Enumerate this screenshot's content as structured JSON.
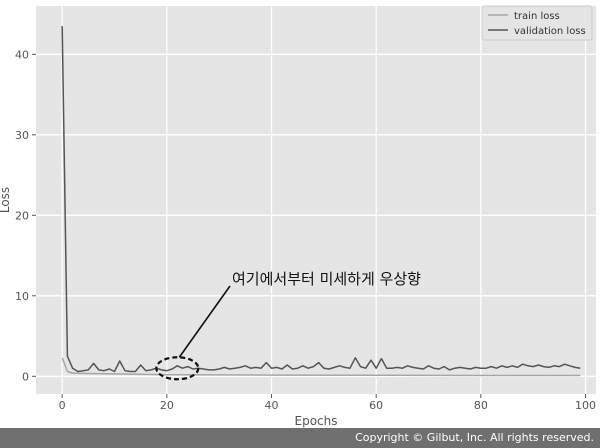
{
  "chart_data": {
    "type": "line",
    "xlabel": "Epochs",
    "ylabel": "Loss",
    "xlim": [
      -5,
      102
    ],
    "ylim": [
      -2.2,
      46
    ],
    "xticks": [
      0,
      20,
      40,
      60,
      80,
      100
    ],
    "yticks": [
      0,
      10,
      20,
      30,
      40
    ],
    "grid": true,
    "legend_position": "top-right",
    "series": [
      {
        "name": "train loss",
        "color": "#a6a6a6",
        "points": [
          [
            0,
            2.3
          ],
          [
            1,
            0.6
          ],
          [
            2,
            0.4
          ],
          [
            5,
            0.35
          ],
          [
            10,
            0.3
          ],
          [
            20,
            0.2
          ],
          [
            40,
            0.15
          ],
          [
            60,
            0.12
          ],
          [
            80,
            0.1
          ],
          [
            99,
            0.1
          ]
        ]
      },
      {
        "name": "validation loss",
        "color": "#555555",
        "points": [
          [
            0,
            43.5
          ],
          [
            1,
            2.5
          ],
          [
            2,
            1.0
          ],
          [
            3,
            0.6
          ],
          [
            4,
            0.7
          ],
          [
            5,
            0.8
          ],
          [
            6,
            1.6
          ],
          [
            7,
            0.8
          ],
          [
            8,
            0.7
          ],
          [
            9,
            0.9
          ],
          [
            10,
            0.6
          ],
          [
            11,
            1.9
          ],
          [
            12,
            0.7
          ],
          [
            13,
            0.6
          ],
          [
            14,
            0.6
          ],
          [
            15,
            1.4
          ],
          [
            16,
            0.7
          ],
          [
            17,
            0.8
          ],
          [
            18,
            1.0
          ],
          [
            19,
            0.8
          ],
          [
            20,
            0.7
          ],
          [
            21,
            0.9
          ],
          [
            22,
            1.3
          ],
          [
            23,
            1.0
          ],
          [
            24,
            1.2
          ],
          [
            25,
            0.9
          ],
          [
            26,
            1.0
          ],
          [
            27,
            0.9
          ],
          [
            28,
            0.8
          ],
          [
            29,
            0.8
          ],
          [
            30,
            0.9
          ],
          [
            31,
            1.1
          ],
          [
            32,
            0.9
          ],
          [
            33,
            1.0
          ],
          [
            34,
            1.1
          ],
          [
            35,
            1.3
          ],
          [
            36,
            1.0
          ],
          [
            37,
            1.1
          ],
          [
            38,
            1.0
          ],
          [
            39,
            1.7
          ],
          [
            40,
            1.0
          ],
          [
            41,
            1.1
          ],
          [
            42,
            0.9
          ],
          [
            43,
            1.4
          ],
          [
            44,
            0.9
          ],
          [
            45,
            1.0
          ],
          [
            46,
            1.3
          ],
          [
            47,
            1.0
          ],
          [
            48,
            1.2
          ],
          [
            49,
            1.7
          ],
          [
            50,
            1.0
          ],
          [
            51,
            0.9
          ],
          [
            52,
            1.1
          ],
          [
            53,
            1.3
          ],
          [
            54,
            1.1
          ],
          [
            55,
            1.0
          ],
          [
            56,
            2.3
          ],
          [
            57,
            1.2
          ],
          [
            58,
            1.0
          ],
          [
            59,
            2.0
          ],
          [
            60,
            1.0
          ],
          [
            61,
            2.2
          ],
          [
            62,
            1.0
          ],
          [
            63,
            1.0
          ],
          [
            64,
            1.1
          ],
          [
            65,
            1.0
          ],
          [
            66,
            1.3
          ],
          [
            67,
            1.1
          ],
          [
            68,
            1.0
          ],
          [
            69,
            0.9
          ],
          [
            70,
            1.3
          ],
          [
            71,
            1.0
          ],
          [
            72,
            0.9
          ],
          [
            73,
            1.2
          ],
          [
            74,
            0.8
          ],
          [
            75,
            1.0
          ],
          [
            76,
            1.1
          ],
          [
            77,
            1.0
          ],
          [
            78,
            0.9
          ],
          [
            79,
            1.1
          ],
          [
            80,
            1.0
          ],
          [
            81,
            1.0
          ],
          [
            82,
            1.2
          ],
          [
            83,
            1.0
          ],
          [
            84,
            1.3
          ],
          [
            85,
            1.1
          ],
          [
            86,
            1.3
          ],
          [
            87,
            1.1
          ],
          [
            88,
            1.5
          ],
          [
            89,
            1.3
          ],
          [
            90,
            1.2
          ],
          [
            91,
            1.4
          ],
          [
            92,
            1.2
          ],
          [
            93,
            1.1
          ],
          [
            94,
            1.3
          ],
          [
            95,
            1.2
          ],
          [
            96,
            1.5
          ],
          [
            97,
            1.3
          ],
          [
            98,
            1.1
          ],
          [
            99,
            1.0
          ]
        ]
      }
    ],
    "annotation": {
      "text": "여기에서부터 미세하게 우상향",
      "target": [
        22,
        1.0
      ]
    }
  },
  "footer": {
    "copyright": "Copyright © Gilbut, Inc. All rights reserved."
  }
}
